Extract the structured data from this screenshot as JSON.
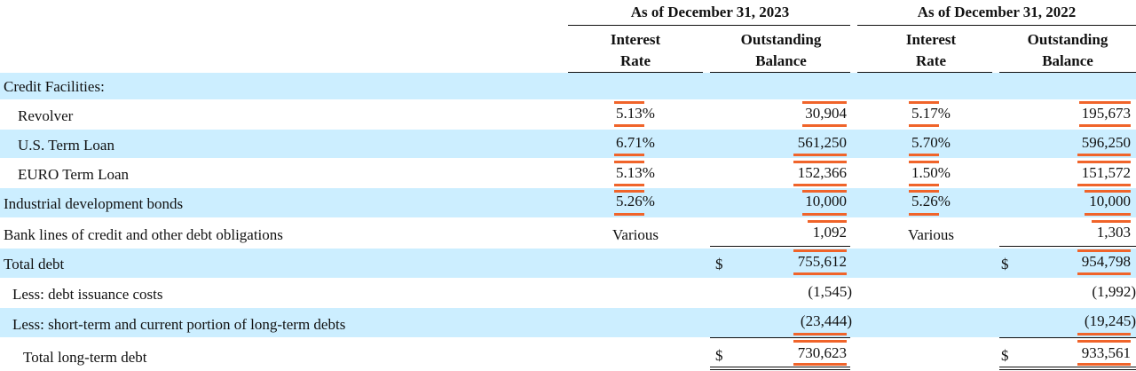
{
  "colors": {
    "band": "#cceeff",
    "highlight": "#f0642a"
  },
  "header": {
    "period_2023": "As of December 31, 2023",
    "period_2022": "As of December 31, 2022",
    "rate_line1": "Interest",
    "rate_line2": "Rate",
    "bal_line1": "Outstanding",
    "bal_line2": "Balance"
  },
  "rows": {
    "credit_facilities": {
      "label": "Credit Facilities:"
    },
    "revolver": {
      "label": "Revolver",
      "rate_2023": "5.13%",
      "bal_2023": "30,904",
      "rate_2022": "5.17%",
      "bal_2022": "195,673"
    },
    "us_term": {
      "label": "U.S. Term Loan",
      "rate_2023": "6.71%",
      "bal_2023": "561,250",
      "rate_2022": "5.70%",
      "bal_2022": "596,250"
    },
    "euro_term": {
      "label": "EURO Term Loan",
      "rate_2023": "5.13%",
      "bal_2023": "152,366",
      "rate_2022": "1.50%",
      "bal_2022": "151,572"
    },
    "idb": {
      "label": "Industrial development bonds",
      "rate_2023": "5.26%",
      "bal_2023": "10,000",
      "rate_2022": "5.26%",
      "bal_2022": "10,000"
    },
    "bank_lines": {
      "label": "Bank lines of credit and other debt obligations",
      "rate_2023": "Various",
      "bal_2023": "1,092",
      "rate_2022": "Various",
      "bal_2022": "1,303"
    },
    "total_debt": {
      "label": "Total debt",
      "cur_2023": "$",
      "bal_2023": "755,612",
      "cur_2022": "$",
      "bal_2022": "954,798"
    },
    "issuance": {
      "label": "Less: debt issuance costs",
      "bal_2023": "(1,545)",
      "bal_2022": "(1,992)"
    },
    "short_term": {
      "label": "Less: short-term and current portion of long-term debts",
      "bal_2023": "(23,444)",
      "bal_2022": "(19,245)"
    },
    "total_lt": {
      "label": "Total long-term debt",
      "cur_2023": "$",
      "bal_2023": "730,623",
      "cur_2022": "$",
      "bal_2022": "933,561"
    }
  }
}
